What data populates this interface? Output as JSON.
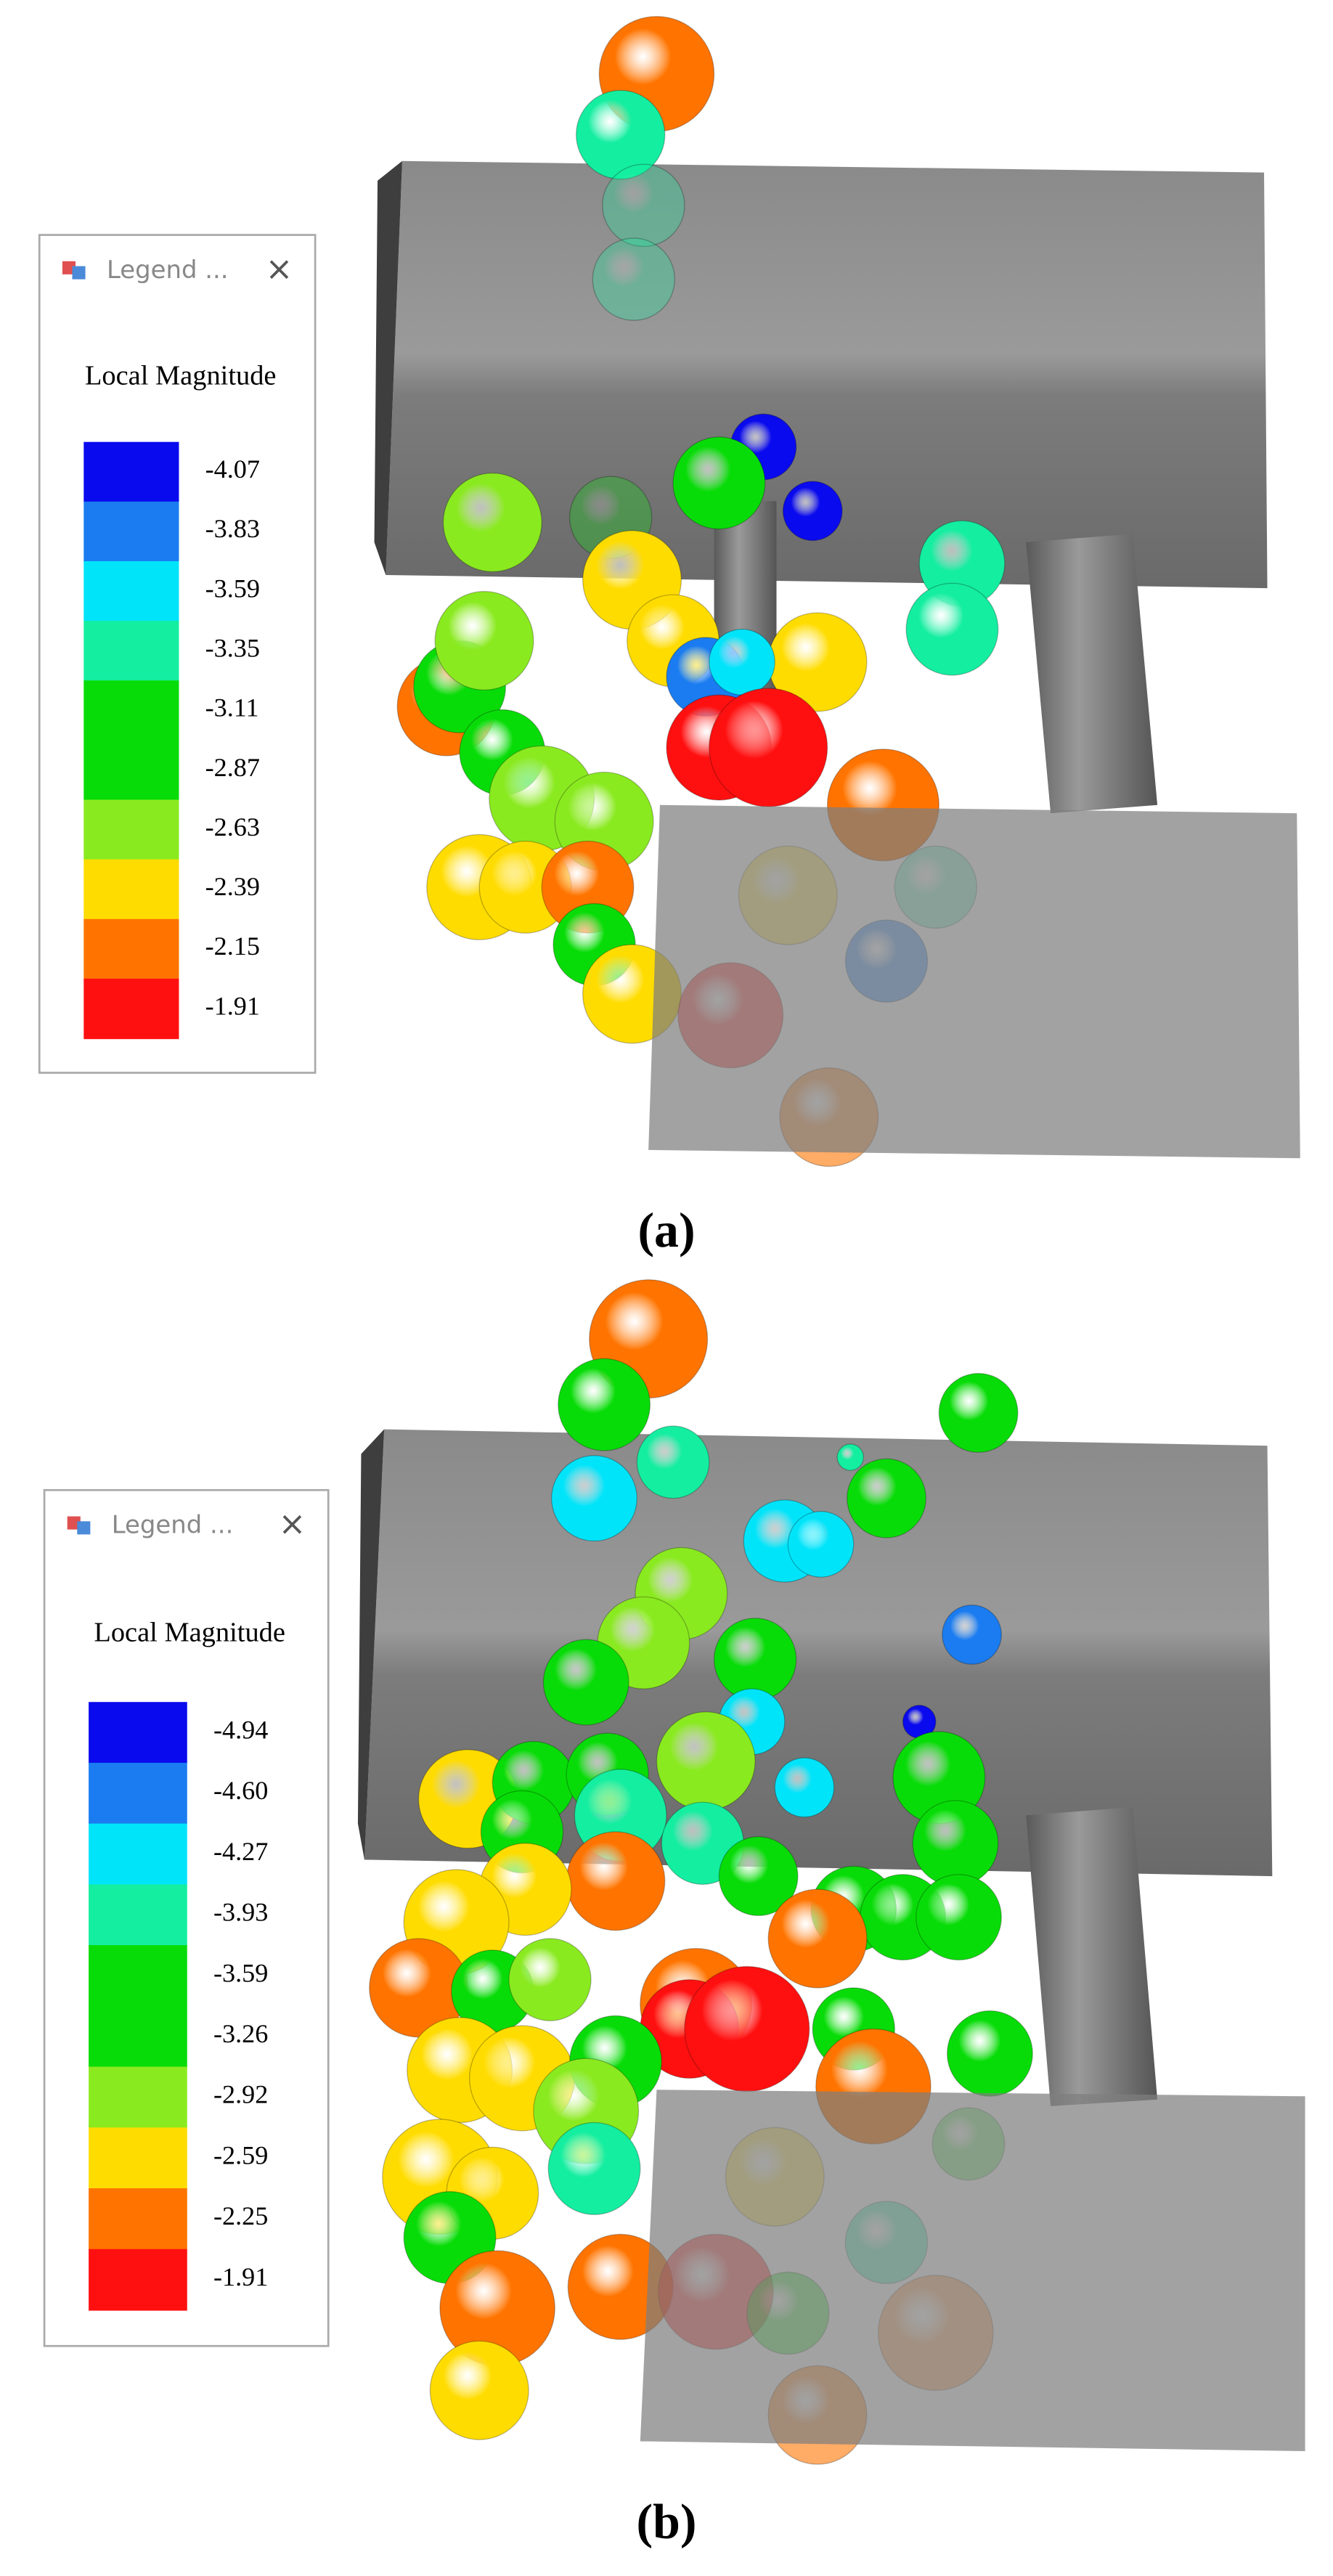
{
  "panels": [
    {
      "legend": {
        "title": "Legend ...",
        "close": "×",
        "heading": "Local Magnitude",
        "items": [
          {
            "label": "-4.07",
            "color": "#0a0aee"
          },
          {
            "label": "-3.83",
            "color": "#1a7cf0"
          },
          {
            "label": "-3.59",
            "color": "#00e4fa"
          },
          {
            "label": "-3.35",
            "color": "#14eea0"
          },
          {
            "label": "-3.11",
            "color": "#08dc08"
          },
          {
            "label": "-2.87",
            "color": "#08dc08"
          },
          {
            "label": "-2.63",
            "color": "#8aea20"
          },
          {
            "label": "-2.39",
            "color": "#ffdc00"
          },
          {
            "label": "-2.15",
            "color": "#ff7400"
          },
          {
            "label": "-1.91",
            "color": "#ff1010"
          }
        ]
      },
      "caption": "(a)"
    },
    {
      "legend": {
        "title": "Legend ...",
        "close": "×",
        "heading": "Local Magnitude",
        "items": [
          {
            "label": "-4.94",
            "color": "#0a0aee"
          },
          {
            "label": "-4.60",
            "color": "#1a7cf0"
          },
          {
            "label": "-4.27",
            "color": "#00e4fa"
          },
          {
            "label": "-3.93",
            "color": "#14eea0"
          },
          {
            "label": "-3.59",
            "color": "#08dc08"
          },
          {
            "label": "-3.26",
            "color": "#08dc08"
          },
          {
            "label": "-2.92",
            "color": "#8aea20"
          },
          {
            "label": "-2.59",
            "color": "#ffdc00"
          },
          {
            "label": "-2.25",
            "color": "#ff7400"
          },
          {
            "label": "-1.91",
            "color": "#ff1010"
          }
        ]
      },
      "caption": "(b)"
    }
  ]
}
